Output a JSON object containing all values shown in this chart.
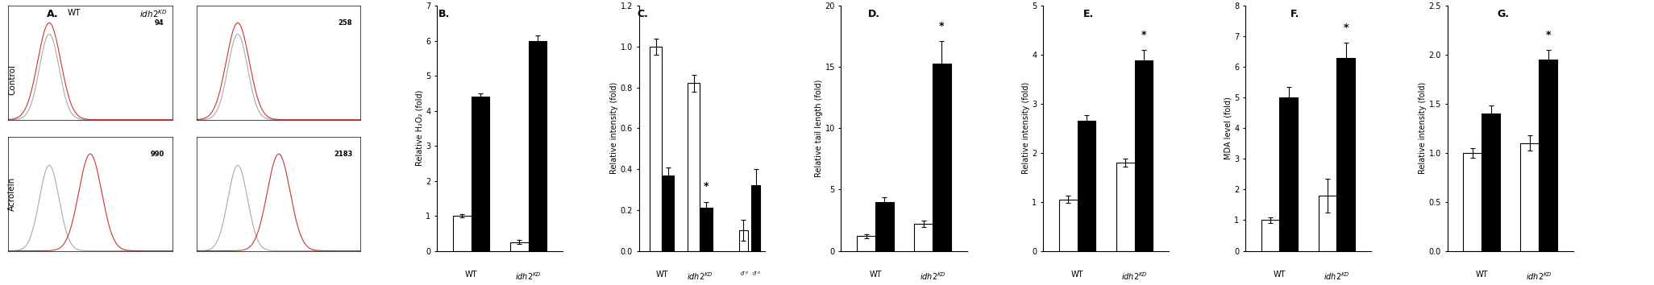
{
  "panel_B": {
    "title": "B.",
    "ylabel": "Relative H₂O₂ (fold)",
    "ylim": [
      0,
      7
    ],
    "yticks": [
      0,
      1,
      2,
      3,
      4,
      5,
      6,
      7
    ],
    "xtick_labels": [
      "WT",
      "idh2^KD"
    ],
    "control_vals": [
      1.0,
      0.25
    ],
    "acrolein_vals": [
      4.4,
      6.0
    ],
    "control_err": [
      0.05,
      0.05
    ],
    "acrolein_err": [
      0.1,
      0.15
    ]
  },
  "panel_C": {
    "title": "C.",
    "ylabel": "Relative intensity (fold)",
    "ylim": [
      0,
      1.2
    ],
    "yticks": [
      0,
      0.2,
      0.4,
      0.6,
      0.8,
      1.0,
      1.2
    ],
    "xtick_labels": [
      "WT",
      "idh2^KD"
    ],
    "control_vals": [
      1.0,
      0.82
    ],
    "acrolein_vals": [
      0.37,
      0.21
    ],
    "control_err": [
      0.04,
      0.04
    ],
    "acrolein_err": [
      0.04,
      0.03
    ],
    "star_group": "idh2KD",
    "extra_bars": true,
    "extra_control": 0.1,
    "extra_acrolein": 0.32,
    "extra_err_c": 0.05,
    "extra_err_a": 0.08
  },
  "panel_D": {
    "title": "D.",
    "ylabel": "Relative tail length (fold)",
    "ylim": [
      0,
      20
    ],
    "yticks": [
      0,
      5,
      10,
      15,
      20
    ],
    "xtick_labels": [
      "WT",
      "idh2^KD"
    ],
    "control_vals": [
      1.2,
      2.2
    ],
    "acrolein_vals": [
      4.0,
      15.3
    ],
    "control_err": [
      0.15,
      0.25
    ],
    "acrolein_err": [
      0.4,
      1.8
    ],
    "star_group": "idh2KD"
  },
  "panel_E": {
    "title": "E.",
    "ylabel": "Relative intensity (fold)",
    "ylim": [
      0,
      5
    ],
    "yticks": [
      0,
      1,
      2,
      3,
      4,
      5
    ],
    "xtick_labels": [
      "WT",
      "idh2^KD"
    ],
    "control_vals": [
      1.05,
      1.8
    ],
    "acrolein_vals": [
      2.65,
      3.88
    ],
    "control_err": [
      0.08,
      0.08
    ],
    "acrolein_err": [
      0.12,
      0.22
    ],
    "star_group": "idh2KD"
  },
  "panel_F": {
    "title": "F.",
    "ylabel": "MDA level (fold)",
    "ylim": [
      0,
      8
    ],
    "yticks": [
      0,
      1,
      2,
      3,
      4,
      5,
      6,
      7,
      8
    ],
    "xtick_labels": [
      "WT",
      "idh2^KD"
    ],
    "control_vals": [
      1.0,
      1.8
    ],
    "acrolein_vals": [
      5.0,
      6.3
    ],
    "control_err": [
      0.08,
      0.55
    ],
    "acrolein_err": [
      0.35,
      0.5
    ],
    "star_group": "idh2KD"
  },
  "panel_G": {
    "title": "G.",
    "ylabel": "Relative intensity (fold)",
    "ylim": [
      0,
      2.5
    ],
    "yticks": [
      0,
      0.5,
      1.0,
      1.5,
      2.0,
      2.5
    ],
    "xtick_labels": [
      "WT",
      "idh2^KD"
    ],
    "control_vals": [
      1.0,
      1.1
    ],
    "acrolein_vals": [
      1.4,
      1.95
    ],
    "control_err": [
      0.05,
      0.08
    ],
    "acrolein_err": [
      0.08,
      0.1
    ],
    "star_group": "idh2KD"
  },
  "legend": {
    "control_label": "Control",
    "acrolein_label": "Acrolein",
    "control_color": "white",
    "acrolein_color": "black"
  },
  "bar_width": 0.32,
  "fontsize": 7.5,
  "title_fontsize": 9,
  "label_fontsize": 7,
  "tick_fontsize": 7
}
